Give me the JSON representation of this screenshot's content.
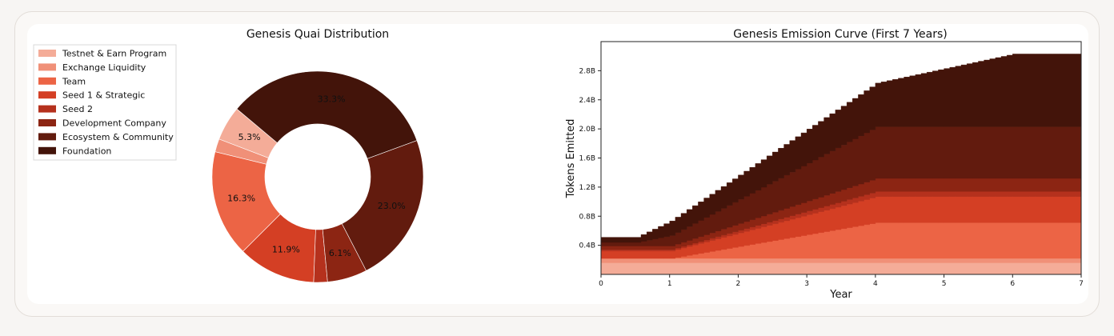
{
  "chart_data": [
    {
      "type": "pie",
      "title": "Genesis Quai Distribution",
      "legend_position": "top-left",
      "slices": [
        {
          "name": "Testnet & Earn Program",
          "value": 5.3,
          "label": "5.3%",
          "color": "#f4ac98"
        },
        {
          "name": "Exchange Liquidity",
          "value": 2.0,
          "label": "",
          "color": "#f09078"
        },
        {
          "name": "Team",
          "value": 16.3,
          "label": "16.3%",
          "color": "#ec6445"
        },
        {
          "name": "Seed 1 & Strategic",
          "value": 11.9,
          "label": "11.9%",
          "color": "#d43f24"
        },
        {
          "name": "Seed 2",
          "value": 2.1,
          "label": "",
          "color": "#b5311d"
        },
        {
          "name": "Development Company",
          "value": 6.1,
          "label": "6.1%",
          "color": "#8c2513"
        },
        {
          "name": "Ecosystem & Community",
          "value": 23.0,
          "label": "23.0%",
          "color": "#621b0e"
        },
        {
          "name": "Foundation",
          "value": 33.3,
          "label": "33.3%",
          "color": "#43140a"
        }
      ]
    },
    {
      "type": "area",
      "stacked": true,
      "title": "Genesis Emission Curve (First 7 Years)",
      "xlabel": "Year",
      "ylabel": "Tokens Emitted",
      "xlim": [
        0,
        7
      ],
      "ylim": [
        0,
        3.2
      ],
      "xticks": [
        0,
        1,
        2,
        3,
        4,
        5,
        6,
        7
      ],
      "xtick_labels": [
        "0",
        "1",
        "2",
        "3",
        "4",
        "5",
        "6",
        "7"
      ],
      "yticks": [
        0.4,
        0.8,
        1.2,
        1.6,
        2.0,
        2.4,
        2.8
      ],
      "ytick_labels": [
        "0.4B",
        "0.8B",
        "1.2B",
        "1.6B",
        "2.0B",
        "2.4B",
        "2.8B"
      ],
      "step_per_year": 12,
      "series": [
        {
          "name": "Testnet & Earn Program",
          "color": "#f4ac98",
          "points": [
            [
              0,
              0.16
            ],
            [
              7,
              0.16
            ]
          ]
        },
        {
          "name": "Exchange Liquidity",
          "color": "#f09078",
          "points": [
            [
              0,
              0.06
            ],
            [
              7,
              0.06
            ]
          ]
        },
        {
          "name": "Team",
          "color": "#ec6445",
          "points": [
            [
              0,
              0.0
            ],
            [
              1,
              0.0
            ],
            [
              4,
              0.49
            ],
            [
              7,
              0.49
            ]
          ]
        },
        {
          "name": "Seed 1 & Strategic",
          "color": "#d43f24",
          "points": [
            [
              0,
              0.1
            ],
            [
              1,
              0.1
            ],
            [
              4,
              0.36
            ],
            [
              7,
              0.36
            ]
          ]
        },
        {
          "name": "Seed 2",
          "color": "#b5311d",
          "points": [
            [
              0,
              0.02
            ],
            [
              1,
              0.02
            ],
            [
              4,
              0.07
            ],
            [
              7,
              0.07
            ]
          ]
        },
        {
          "name": "Development Company",
          "color": "#8c2513",
          "points": [
            [
              0,
              0.05
            ],
            [
              1,
              0.05
            ],
            [
              4,
              0.18
            ],
            [
              7,
              0.18
            ]
          ]
        },
        {
          "name": "Ecosystem & Community",
          "color": "#621b0e",
          "points": [
            [
              0,
              0.05
            ],
            [
              0.5,
              0.05
            ],
            [
              4,
              0.71
            ],
            [
              7,
              0.71
            ]
          ]
        },
        {
          "name": "Foundation",
          "color": "#43140a",
          "points": [
            [
              0,
              0.07
            ],
            [
              0.5,
              0.07
            ],
            [
              1,
              0.2
            ],
            [
              4,
              0.6
            ],
            [
              6,
              1.0
            ],
            [
              7,
              1.0
            ]
          ]
        }
      ]
    }
  ]
}
